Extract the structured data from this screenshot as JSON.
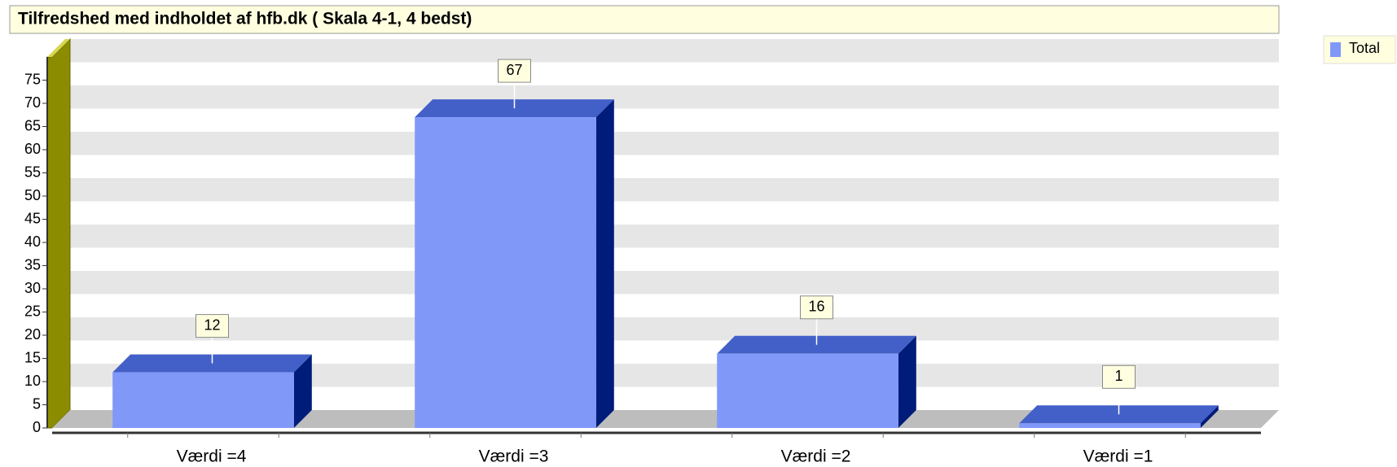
{
  "chart_data": {
    "type": "bar",
    "title": "Tilfredshed med indholdet af hfb.dk ( Skala 4-1, 4 bedst)",
    "categories": [
      "Værdi =4",
      "Værdi =3",
      "Værdi =2",
      "Værdi =1"
    ],
    "series": [
      {
        "name": "Total",
        "color": "#8098f8",
        "values": [
          12,
          67,
          16,
          1
        ]
      }
    ],
    "ylim": [
      0,
      80
    ],
    "yticks": [
      0,
      5,
      10,
      15,
      20,
      25,
      30,
      35,
      40,
      45,
      50,
      55,
      60,
      65,
      70,
      75
    ],
    "grid": true,
    "legend": "top-right"
  }
}
